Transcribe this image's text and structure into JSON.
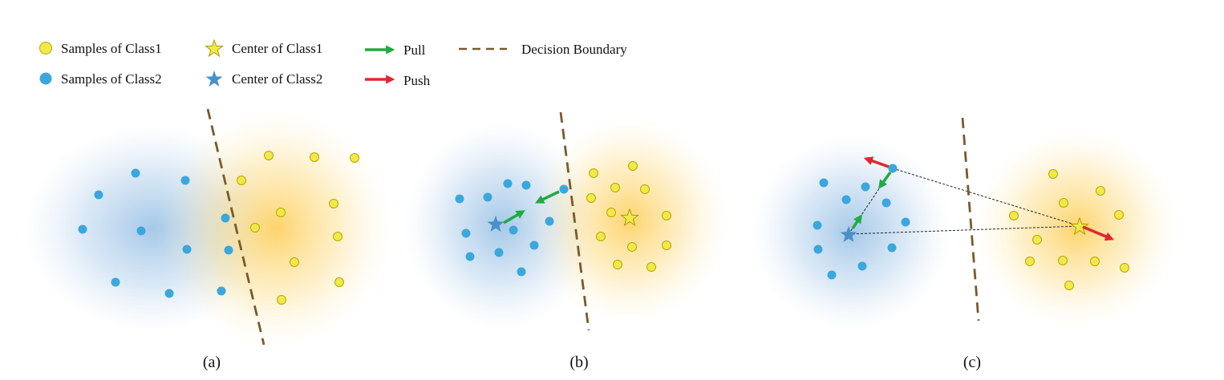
{
  "legend": {
    "samples_class1": "Samples of Class1",
    "samples_class2": "Samples of Class2",
    "center_class1": "Center of Class1",
    "center_class2": "Center of Class2",
    "pull": "Pull",
    "push": "Push",
    "decision_boundary": "Decision Boundary"
  },
  "panels": [
    {
      "label": "(a)"
    },
    {
      "label": "(b)"
    },
    {
      "label": "(c)"
    }
  ],
  "colors": {
    "class1_fill": "#f2e84a",
    "class1_stroke": "#b5a800",
    "class1_cloud": "#fdc63a",
    "class2_fill": "#3aa7dd",
    "class2_cloud": "#5b9bd5",
    "center2_fill": "#4a90c8",
    "pull": "#22aa44",
    "push": "#e3262e",
    "boundary": "#7a5a2a"
  }
}
